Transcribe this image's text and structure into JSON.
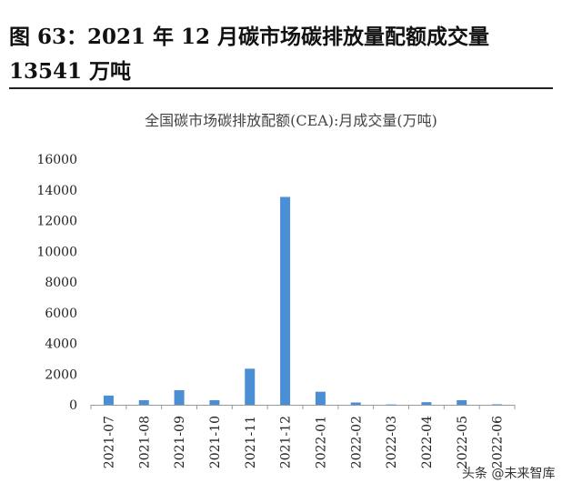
{
  "figure": {
    "title_line1": "图 63：2021 年 12 月碳市场碳排放量配额成交量",
    "title_line2": "13541 万吨"
  },
  "chart_data": {
    "type": "bar",
    "title": "全国碳市场碳排放配额(CEA):月成交量(万吨)",
    "categories": [
      "2021-07",
      "2021-08",
      "2021-09",
      "2021-10",
      "2021-11",
      "2021-12",
      "2022-01",
      "2022-02",
      "2022-03",
      "2022-04",
      "2022-05",
      "2022-06"
    ],
    "values": [
      600,
      300,
      950,
      300,
      2350,
      13541,
      850,
      150,
      20,
      170,
      300,
      30
    ],
    "ylim": [
      0,
      16000
    ],
    "yticks": [
      0,
      2000,
      4000,
      6000,
      8000,
      10000,
      12000,
      14000,
      16000
    ],
    "ytick_labels": [
      "0",
      "2000",
      "4000",
      "6000",
      "8000",
      "10000",
      "12000",
      "14000",
      "16000"
    ],
    "bar_color": "#4a8fd6",
    "grid": false
  },
  "watermark": "头条 @未来智库"
}
